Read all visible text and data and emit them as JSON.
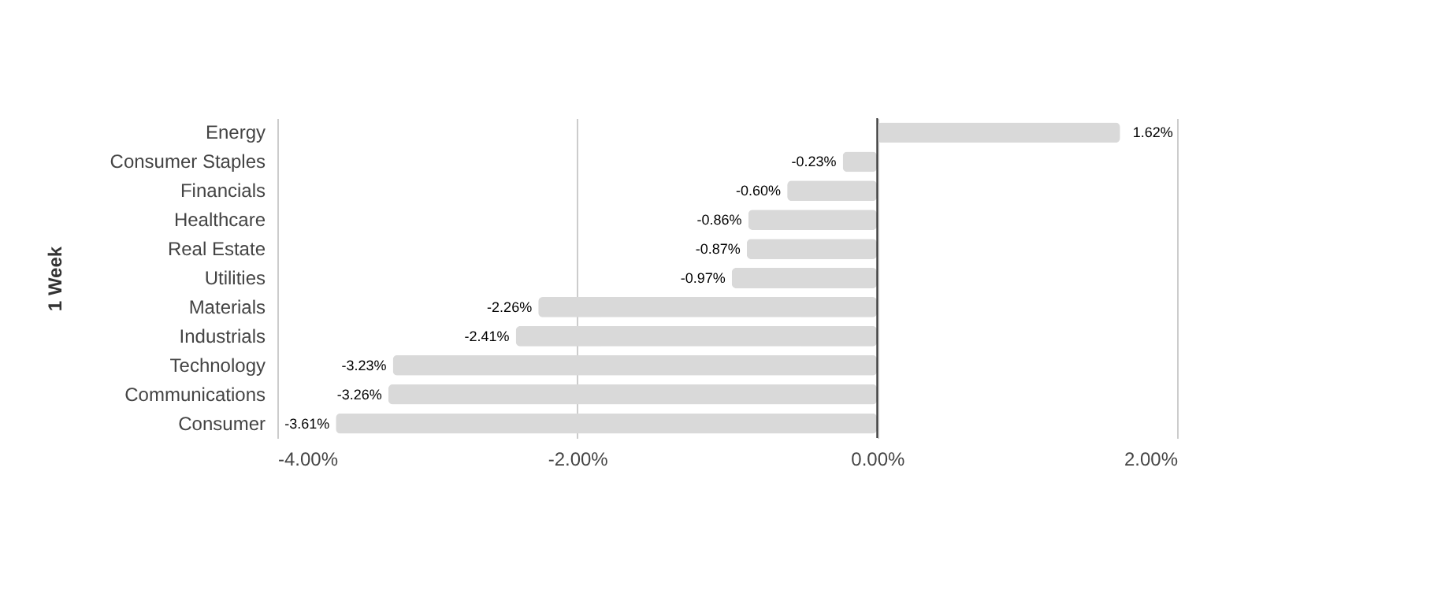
{
  "chart_data": {
    "type": "bar",
    "orientation": "horizontal",
    "ylabel": "1 Week",
    "categories": [
      "Energy",
      "Consumer Staples",
      "Financials",
      "Healthcare",
      "Real Estate",
      "Utilities",
      "Materials",
      "Industrials",
      "Technology",
      "Communications",
      "Consumer"
    ],
    "values": [
      1.62,
      -0.23,
      -0.6,
      -0.86,
      -0.87,
      -0.97,
      -2.26,
      -2.41,
      -3.23,
      -3.26,
      -3.61
    ],
    "value_labels": [
      "1.62%",
      "-0.23%",
      "-0.60%",
      "-0.86%",
      "-0.87%",
      "-0.97%",
      "-2.26%",
      "-2.41%",
      "-3.23%",
      "-3.26%",
      "-3.61%"
    ],
    "color": "#d9d9d9",
    "xlim": [
      -4,
      2
    ],
    "xticks": [
      {
        "value": -4,
        "label": "-4.00%"
      },
      {
        "value": -2,
        "label": "-2.00%"
      },
      {
        "value": 0,
        "label": "0.00%"
      },
      {
        "value": 2,
        "label": "2.00%"
      }
    ],
    "grid": "x",
    "ref_lines": [
      {
        "axis": "x",
        "value": 0,
        "label": null,
        "color": "#333333"
      }
    ]
  }
}
